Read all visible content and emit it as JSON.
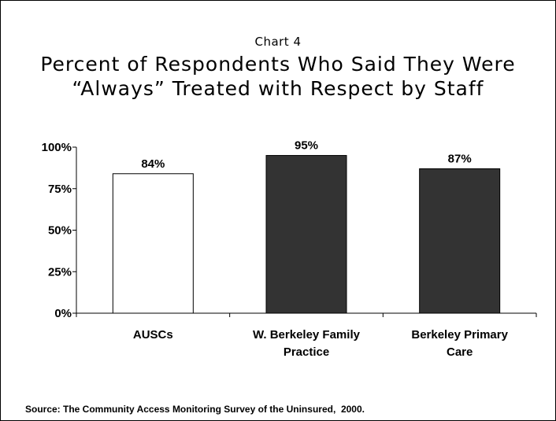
{
  "chart_label": "Chart 4",
  "title_line1": "Percent of Respondents Who Said They Were",
  "title_line2": "“Always” Treated with Respect by Staff",
  "source": "Source: The Community Access Monitoring Survey of the Uninsured,  2000.",
  "chart_data": {
    "type": "bar",
    "title": "Percent of Respondents Who Said They Were “Always” Treated with Respect by Staff",
    "categories": [
      [
        "AUSCs"
      ],
      [
        "W. Berkeley Family",
        "Practice"
      ],
      [
        "Berkeley Primary",
        "Care"
      ]
    ],
    "values": [
      84,
      95,
      87
    ],
    "value_labels": [
      "84%",
      "95%",
      "87%"
    ],
    "bar_colors": [
      "#ffffff",
      "#333333",
      "#333333"
    ],
    "ylim": [
      0,
      100
    ],
    "yticks": [
      0,
      25,
      50,
      75,
      100
    ],
    "ytick_labels": [
      "0%",
      "25%",
      "50%",
      "75%",
      "100%"
    ],
    "xlabel": "",
    "ylabel": "",
    "grid": false,
    "legend": "none"
  }
}
